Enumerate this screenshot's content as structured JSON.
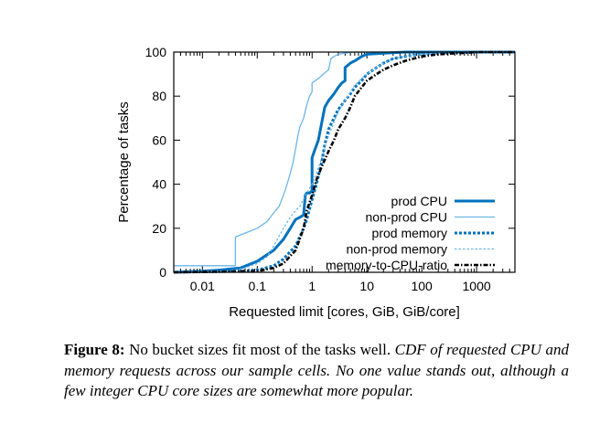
{
  "chart_data": {
    "type": "line",
    "xlabel": "Requested limit [cores, GiB, GiB/core]",
    "ylabel": "Percentage of tasks",
    "x_scale": "log",
    "xlim": [
      0.003,
      5000
    ],
    "ylim": [
      0,
      100
    ],
    "x_ticks": [
      0.01,
      0.1,
      1,
      10,
      100,
      1000
    ],
    "x_tick_labels": [
      "0.01",
      "0.1",
      "1",
      "10",
      "100",
      "1000"
    ],
    "y_ticks": [
      0,
      20,
      40,
      60,
      80,
      100
    ],
    "y_tick_labels": [
      "0",
      "20",
      "40",
      "60",
      "80",
      "100"
    ],
    "legend_position": "bottom-right",
    "series": [
      {
        "name": "prod CPU",
        "color": "#0072bd",
        "style": "solid-thick",
        "points": [
          [
            0.003,
            0
          ],
          [
            0.01,
            0.5
          ],
          [
            0.02,
            1
          ],
          [
            0.05,
            2
          ],
          [
            0.1,
            5
          ],
          [
            0.2,
            10
          ],
          [
            0.3,
            15
          ],
          [
            0.4,
            20
          ],
          [
            0.5,
            24
          ],
          [
            0.6,
            25
          ],
          [
            0.7,
            26
          ],
          [
            0.75,
            35
          ],
          [
            0.8,
            36
          ],
          [
            0.9,
            36
          ],
          [
            1.0,
            37
          ],
          [
            1.0,
            52
          ],
          [
            1.1,
            55
          ],
          [
            1.3,
            60
          ],
          [
            1.5,
            68
          ],
          [
            1.7,
            75
          ],
          [
            2.0,
            78
          ],
          [
            2.5,
            81
          ],
          [
            3.0,
            84
          ],
          [
            3.5,
            86
          ],
          [
            4.0,
            87
          ],
          [
            4.0,
            93
          ],
          [
            5,
            95
          ],
          [
            6,
            96
          ],
          [
            8,
            98
          ],
          [
            10,
            99
          ],
          [
            20,
            99.5
          ],
          [
            50,
            100
          ],
          [
            5000,
            100
          ]
        ]
      },
      {
        "name": "non-prod CPU",
        "color": "#6cb6e8",
        "style": "solid-thin",
        "points": [
          [
            0.003,
            3
          ],
          [
            0.04,
            3
          ],
          [
            0.04,
            16
          ],
          [
            0.05,
            17
          ],
          [
            0.1,
            20
          ],
          [
            0.15,
            23
          ],
          [
            0.2,
            27
          ],
          [
            0.25,
            30
          ],
          [
            0.3,
            35
          ],
          [
            0.35,
            40
          ],
          [
            0.4,
            45
          ],
          [
            0.45,
            50
          ],
          [
            0.5,
            56
          ],
          [
            0.55,
            62
          ],
          [
            0.6,
            66
          ],
          [
            0.7,
            70
          ],
          [
            0.8,
            76
          ],
          [
            0.9,
            80
          ],
          [
            1.0,
            82
          ],
          [
            1.0,
            86
          ],
          [
            1.3,
            88
          ],
          [
            1.6,
            90
          ],
          [
            2.0,
            92
          ],
          [
            2.2,
            97
          ],
          [
            2.5,
            98
          ],
          [
            3,
            99
          ],
          [
            4,
            99.5
          ],
          [
            6,
            100
          ],
          [
            5000,
            100
          ]
        ]
      },
      {
        "name": "prod memory",
        "color": "#0072bd",
        "style": "dotted-thick",
        "points": [
          [
            0.003,
            0
          ],
          [
            0.05,
            0.5
          ],
          [
            0.1,
            1
          ],
          [
            0.2,
            3
          ],
          [
            0.3,
            6
          ],
          [
            0.5,
            12
          ],
          [
            0.7,
            20
          ],
          [
            0.8,
            24
          ],
          [
            1.0,
            33
          ],
          [
            1.2,
            40
          ],
          [
            1.5,
            50
          ],
          [
            1.7,
            58
          ],
          [
            2.0,
            65
          ],
          [
            2.5,
            70
          ],
          [
            3.0,
            74
          ],
          [
            4.0,
            78
          ],
          [
            5,
            81
          ],
          [
            6,
            84
          ],
          [
            8,
            87
          ],
          [
            10,
            90
          ],
          [
            15,
            93
          ],
          [
            20,
            95
          ],
          [
            30,
            97
          ],
          [
            50,
            98
          ],
          [
            100,
            99
          ],
          [
            200,
            99.5
          ],
          [
            500,
            100
          ],
          [
            5000,
            100
          ]
        ]
      },
      {
        "name": "non-prod memory",
        "color": "#6cb6e8",
        "style": "dotted-thin",
        "points": [
          [
            0.003,
            0
          ],
          [
            0.03,
            0.5
          ],
          [
            0.06,
            2
          ],
          [
            0.1,
            4
          ],
          [
            0.15,
            7
          ],
          [
            0.2,
            12
          ],
          [
            0.3,
            20
          ],
          [
            0.4,
            25
          ],
          [
            0.5,
            28
          ],
          [
            0.6,
            30
          ],
          [
            0.8,
            36
          ],
          [
            1.0,
            40
          ],
          [
            1.2,
            45
          ],
          [
            1.5,
            52
          ],
          [
            2.0,
            62
          ],
          [
            2.5,
            68
          ],
          [
            3.0,
            73
          ],
          [
            4.0,
            78
          ],
          [
            5,
            82
          ],
          [
            6,
            85
          ],
          [
            8,
            88
          ],
          [
            10,
            90
          ],
          [
            15,
            93
          ],
          [
            20,
            95
          ],
          [
            30,
            97
          ],
          [
            50,
            98
          ],
          [
            100,
            99
          ],
          [
            200,
            99.5
          ],
          [
            500,
            100
          ],
          [
            5000,
            100
          ]
        ]
      },
      {
        "name": "memory-to-CPU-ratio",
        "color": "#000000",
        "style": "dashdot",
        "points": [
          [
            0.003,
            0
          ],
          [
            0.1,
            0.5
          ],
          [
            0.2,
            2
          ],
          [
            0.3,
            4
          ],
          [
            0.5,
            10
          ],
          [
            0.7,
            20
          ],
          [
            0.8,
            28
          ],
          [
            1.0,
            35
          ],
          [
            1.2,
            42
          ],
          [
            1.5,
            48
          ],
          [
            2.0,
            55
          ],
          [
            2.5,
            60
          ],
          [
            3.0,
            65
          ],
          [
            4.0,
            70
          ],
          [
            5.0,
            75
          ],
          [
            6,
            80
          ],
          [
            8,
            84
          ],
          [
            10,
            87
          ],
          [
            15,
            90
          ],
          [
            20,
            92
          ],
          [
            30,
            94
          ],
          [
            50,
            96
          ],
          [
            100,
            98
          ],
          [
            200,
            99
          ],
          [
            500,
            99.5
          ],
          [
            1000,
            100
          ],
          [
            5000,
            100
          ]
        ]
      }
    ]
  },
  "caption": {
    "label": "Figure 8:",
    "text_plain": " No bucket sizes fit most of the tasks well. ",
    "text_italic": "CDF of requested CPU and memory requests across our sample cells. No one value stands out, although a few integer CPU core sizes are somewhat more popular."
  }
}
